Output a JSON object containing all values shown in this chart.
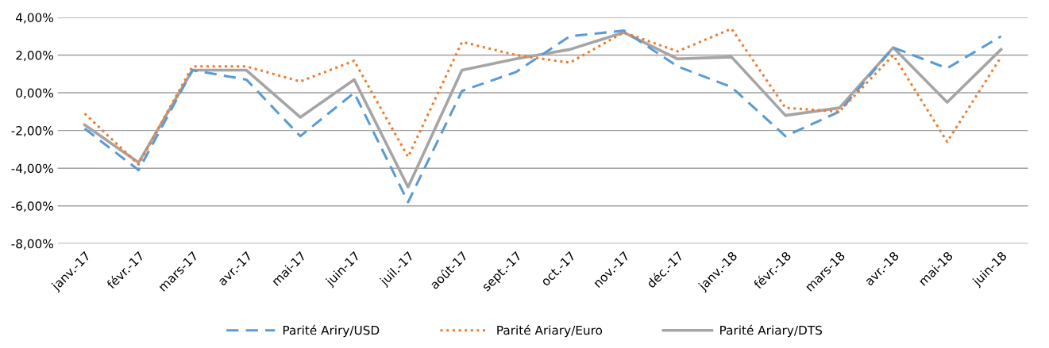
{
  "chart_data": {
    "type": "line",
    "categories": [
      "janv.-17",
      "févr.-17",
      "mars-17",
      "avr.-17",
      "mai-17",
      "juin-17",
      "juil.-17",
      "août-17",
      "sept.-17",
      "oct.-17",
      "nov.-17",
      "déc.-17",
      "janv.-18",
      "févr.-18",
      "mars-18",
      "avr.-18",
      "mai-18",
      "juin-18"
    ],
    "series": [
      {
        "name": "Parité Ariry/USD",
        "color": "#5b9bd5",
        "line_style": "dashed",
        "values": [
          -1.9,
          -4.1,
          1.2,
          0.7,
          -2.3,
          0.0,
          -5.8,
          0.1,
          1.1,
          3.0,
          3.3,
          1.4,
          0.3,
          -2.3,
          -1.0,
          2.4,
          1.3,
          3.0
        ]
      },
      {
        "name": "Parité Ariary/Euro",
        "color": "#ed7d31",
        "line_style": "dotted",
        "values": [
          -1.1,
          -3.8,
          1.4,
          1.4,
          0.6,
          1.7,
          -3.4,
          2.7,
          2.0,
          1.6,
          3.2,
          2.2,
          3.4,
          -0.8,
          -1.0,
          2.0,
          -2.6,
          1.9
        ]
      },
      {
        "name": "Parité Ariary/DTS",
        "color": "#a5a5a5",
        "line_style": "solid",
        "values": [
          -1.7,
          -3.7,
          1.2,
          1.2,
          -1.3,
          0.7,
          -5.0,
          1.2,
          1.8,
          2.3,
          3.2,
          1.8,
          1.9,
          -1.2,
          -0.8,
          2.4,
          -0.5,
          2.3
        ]
      }
    ],
    "ylim": [
      -8,
      4
    ],
    "yticks": [
      {
        "value": -8,
        "label": "-8,00%"
      },
      {
        "value": -6,
        "label": "-6,00%"
      },
      {
        "value": -4,
        "label": "-4,00%"
      },
      {
        "value": -2,
        "label": "-2,00%"
      },
      {
        "value": 0,
        "label": "0,00%"
      },
      {
        "value": 2,
        "label": "2,00%"
      },
      {
        "value": 4,
        "label": "4,00%"
      }
    ],
    "grid": "y",
    "legend": "bottom",
    "marker": "none"
  }
}
